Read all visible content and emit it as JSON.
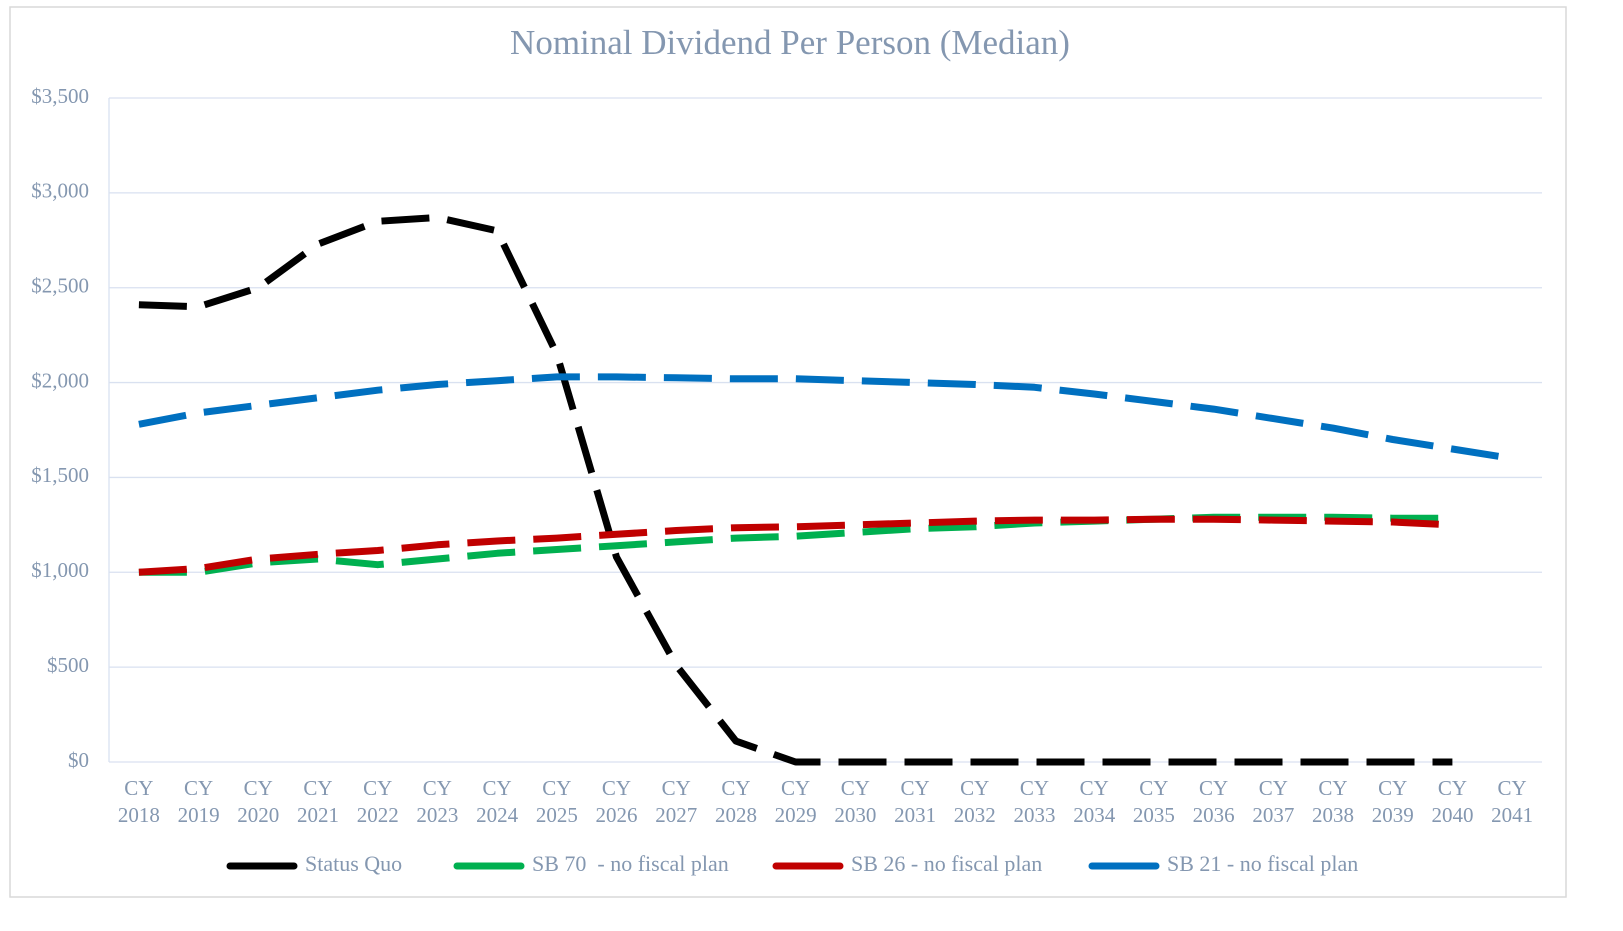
{
  "chart_data": {
    "type": "line",
    "title": "Nominal Dividend Per Person (Median)",
    "categories": [
      "CY 2018",
      "CY 2019",
      "CY 2020",
      "CY 2021",
      "CY 2022",
      "CY 2023",
      "CY 2024",
      "CY 2025",
      "CY 2026",
      "CY 2027",
      "CY 2028",
      "CY 2029",
      "CY 2030",
      "CY 2031",
      "CY 2032",
      "CY 2033",
      "CY 2034",
      "CY 2035",
      "CY 2036",
      "CY 2037",
      "CY 2038",
      "CY 2039",
      "CY 2040",
      "CY 2041"
    ],
    "series": [
      {
        "name": "Status Quo",
        "color": "#000000",
        "values": [
          2410,
          2400,
          2500,
          2730,
          2850,
          2870,
          2800,
          2150,
          1080,
          510,
          110,
          0,
          0,
          0,
          0,
          0,
          0,
          0,
          0,
          0,
          0,
          0,
          0,
          null
        ]
      },
      {
        "name": "SB 70  - no fiscal plan",
        "color": "#00b050",
        "values": [
          1000,
          1000,
          1050,
          1070,
          1040,
          1070,
          1100,
          1120,
          1140,
          1160,
          1180,
          1190,
          1210,
          1230,
          1240,
          1260,
          1270,
          1280,
          1290,
          1290,
          1290,
          1285,
          1285,
          null
        ]
      },
      {
        "name": "SB 26 - no fiscal plan",
        "color": "#c00000",
        "values": [
          1000,
          1020,
          1070,
          1095,
          1115,
          1145,
          1165,
          1180,
          1200,
          1220,
          1235,
          1240,
          1250,
          1260,
          1270,
          1275,
          1275,
          1280,
          1280,
          1275,
          1270,
          1265,
          1250,
          null
        ]
      },
      {
        "name": "SB 21 - no fiscal plan",
        "color": "#0070c0",
        "values": [
          1780,
          1840,
          1880,
          1920,
          1960,
          1990,
          2010,
          2030,
          2030,
          2025,
          2020,
          2020,
          2010,
          2000,
          1990,
          1975,
          1940,
          1900,
          1860,
          1810,
          1760,
          1700,
          1650,
          1600
        ]
      }
    ],
    "ylim": [
      0,
      3500
    ],
    "yticks": [
      {
        "value": 0,
        "label": "$0"
      },
      {
        "value": 500,
        "label": "$500"
      },
      {
        "value": 1000,
        "label": "$1,000"
      },
      {
        "value": 1500,
        "label": "$1,500"
      },
      {
        "value": 2000,
        "label": "$2,000"
      },
      {
        "value": 2500,
        "label": "$2,500"
      },
      {
        "value": 3000,
        "label": "$3,000"
      },
      {
        "value": 3500,
        "label": "$3,500"
      }
    ],
    "grid": true,
    "legend": "bottom"
  }
}
